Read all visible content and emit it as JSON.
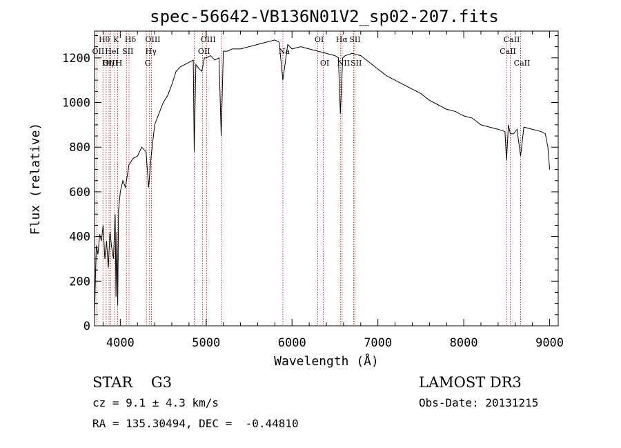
{
  "chart_data": {
    "type": "line",
    "title": "spec-56642-VB136N01V2_sp02-207.fits",
    "xlabel": "Wavelength (Å)",
    "ylabel": "Flux (relative)",
    "xlim": [
      3700,
      9100
    ],
    "ylim": [
      0,
      1320
    ],
    "x_ticks": [
      4000,
      5000,
      6000,
      7000,
      8000,
      9000
    ],
    "y_ticks": [
      0,
      200,
      400,
      600,
      800,
      1000,
      1200
    ],
    "x_minor_step": 200,
    "y_minor_step": 50,
    "series": [
      {
        "name": "spectrum",
        "x": [
          3700,
          3720,
          3740,
          3760,
          3780,
          3800,
          3820,
          3840,
          3860,
          3880,
          3900,
          3920,
          3940,
          3950,
          3960,
          3970,
          3980,
          4000,
          4030,
          4060,
          4100,
          4150,
          4200,
          4250,
          4300,
          4330,
          4360,
          4400,
          4450,
          4500,
          4550,
          4600,
          4650,
          4700,
          4750,
          4800,
          4850,
          4861,
          4880,
          4920,
          4950,
          4980,
          5000,
          5050,
          5100,
          5150,
          5175,
          5200,
          5250,
          5300,
          5400,
          5500,
          5600,
          5700,
          5800,
          5850,
          5893,
          5950,
          6000,
          6100,
          6200,
          6300,
          6400,
          6500,
          6540,
          6563,
          6590,
          6620,
          6700,
          6800,
          6900,
          7000,
          7100,
          7200,
          7300,
          7400,
          7500,
          7600,
          7700,
          7800,
          7900,
          8000,
          8100,
          8200,
          8300,
          8400,
          8480,
          8498,
          8520,
          8542,
          8580,
          8620,
          8662,
          8700,
          8800,
          8900,
          8950,
          8980,
          9000
        ],
        "y": [
          50,
          360,
          320,
          410,
          380,
          450,
          300,
          380,
          260,
          420,
          350,
          300,
          500,
          130,
          420,
          90,
          520,
          600,
          650,
          620,
          720,
          750,
          760,
          800,
          780,
          620,
          760,
          900,
          950,
          1000,
          1030,
          1080,
          1140,
          1160,
          1170,
          1180,
          1190,
          780,
          1170,
          1150,
          1140,
          1200,
          1200,
          1210,
          1190,
          1200,
          850,
          1230,
          1230,
          1240,
          1240,
          1250,
          1260,
          1270,
          1280,
          1270,
          1100,
          1260,
          1240,
          1250,
          1240,
          1230,
          1220,
          1210,
          1200,
          950,
          1200,
          1210,
          1220,
          1210,
          1180,
          1150,
          1120,
          1100,
          1080,
          1060,
          1040,
          1010,
          990,
          970,
          960,
          940,
          930,
          900,
          890,
          880,
          870,
          740,
          900,
          860,
          860,
          880,
          760,
          890,
          880,
          870,
          860,
          800,
          700
        ]
      }
    ],
    "spectral_lines": [
      {
        "label": "Hθ",
        "wavelength": 3798,
        "row": 1
      },
      {
        "label": "OII",
        "wavelength": 3727,
        "row": 2
      },
      {
        "label": "OIII",
        "wavelength": 3869,
        "row": 3
      },
      {
        "label": "K",
        "wavelength": 3934,
        "row": 1
      },
      {
        "label": "HeI",
        "wavelength": 3889,
        "row": 2
      },
      {
        "label": "Hη",
        "wavelength": 3835,
        "row": 3
      },
      {
        "label": "SII",
        "wavelength": 4072,
        "row": 2
      },
      {
        "label": "H",
        "wavelength": 3969,
        "row": 3
      },
      {
        "label": "Hδ",
        "wavelength": 4102,
        "row": 1
      },
      {
        "label": "OIII",
        "wavelength": 4363,
        "row": 1
      },
      {
        "label": "Hγ",
        "wavelength": 4341,
        "row": 2
      },
      {
        "label": "G",
        "wavelength": 4304,
        "row": 3
      },
      {
        "label": "OIII",
        "wavelength": 5007,
        "row": 1
      },
      {
        "label": "OII",
        "wavelength": 4959,
        "row": 2
      },
      {
        "label": "Na",
        "wavelength": 5893,
        "row": 2
      },
      {
        "label": "OI",
        "wavelength": 6300,
        "row": 1
      },
      {
        "label": "OI",
        "wavelength": 6364,
        "row": 3
      },
      {
        "label": "Hα",
        "wavelength": 6563,
        "row": 1
      },
      {
        "label": "SII",
        "wavelength": 6717,
        "row": 1
      },
      {
        "label": "NII",
        "wavelength": 6584,
        "row": 3
      },
      {
        "label": "SII",
        "wavelength": 6731,
        "row": 3
      },
      {
        "label": "CaII",
        "wavelength": 8542,
        "row": 1
      },
      {
        "label": "CaII",
        "wavelength": 8498,
        "row": 2
      },
      {
        "label": "CaII",
        "wavelength": 8662,
        "row": 3
      }
    ],
    "extra_lines": [
      4861,
      5175
    ]
  },
  "info": {
    "class_line": "STAR    G3",
    "cz_line": "cz = 9.1 ± 4.3 km/s",
    "coords_line": "RA = 135.30494, DEC =  -0.44810",
    "survey": "LAMOST DR3",
    "obs_date": "Obs-Date: 20131215"
  },
  "colors": {
    "axis": "#000000",
    "spectrum": "#000000",
    "line_markers": "#cc0000"
  }
}
